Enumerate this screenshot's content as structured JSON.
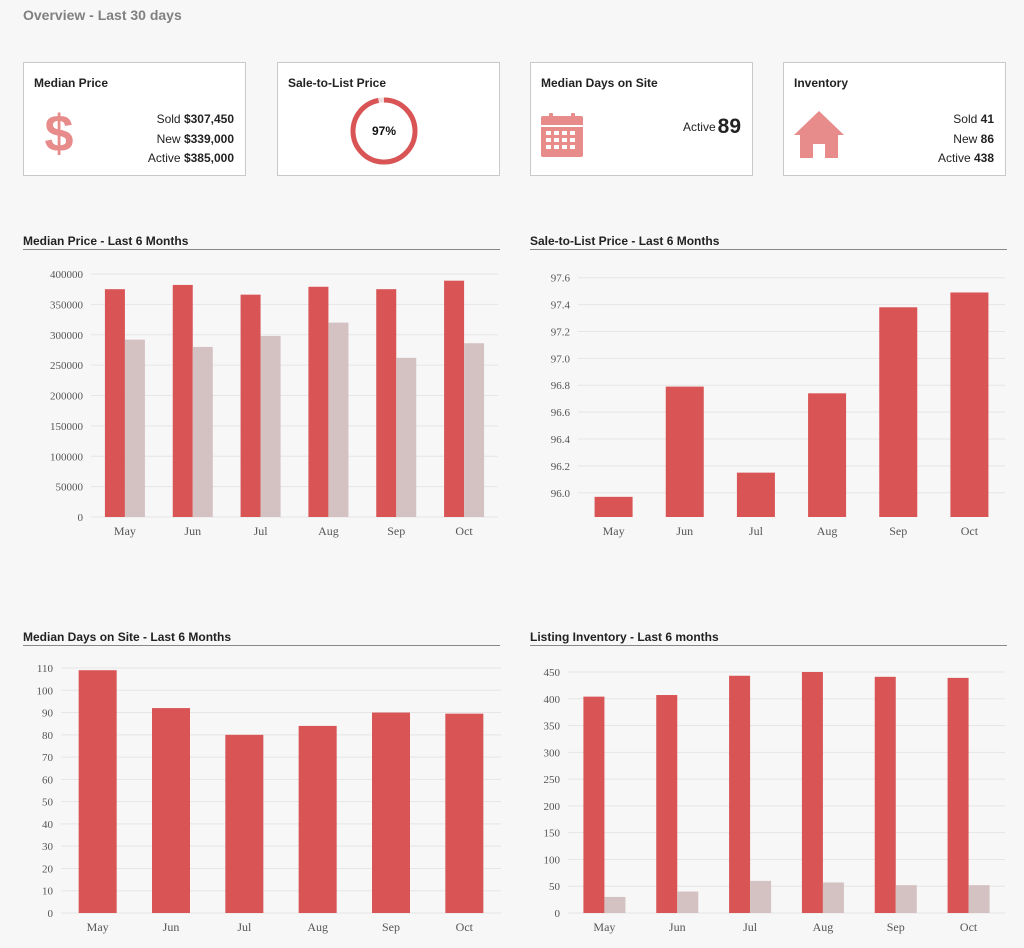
{
  "page": {
    "title": "Overview - Last 30 days"
  },
  "colors": {
    "primary": "#d95454",
    "secondary": "#d4c1c1",
    "icon": "#e78b8b"
  },
  "cards": {
    "median_price": {
      "title": "Median Price",
      "icon": "dollar-icon",
      "sold_label": "Sold",
      "sold_value": "$307,450",
      "new_label": "New",
      "new_value": "$339,000",
      "active_label": "Active",
      "active_value": "$385,000"
    },
    "sale_to_list": {
      "title": "Sale-to-List Price",
      "value": "97%",
      "ratio": 0.97
    },
    "days_on_site": {
      "title": "Median Days on Site",
      "icon": "calendar-icon",
      "active_label": "Active",
      "active_value": "89"
    },
    "inventory": {
      "title": "Inventory",
      "icon": "house-icon",
      "sold_label": "Sold",
      "sold_value": "41",
      "new_label": "New",
      "new_value": "86",
      "active_label": "Active",
      "active_value": "438"
    }
  },
  "chart_data": [
    {
      "type": "bar",
      "title": "Median Price - Last 6 Months",
      "categories": [
        "May",
        "Jun",
        "Jul",
        "Aug",
        "Sep",
        "Oct"
      ],
      "series": [
        {
          "values": [
            375000,
            382000,
            366000,
            379000,
            375000,
            389000
          ]
        },
        {
          "values": [
            292000,
            280000,
            298000,
            320000,
            262000,
            286000
          ]
        }
      ],
      "ylim": [
        0,
        400000
      ],
      "yticks": [
        0,
        50000,
        100000,
        150000,
        200000,
        250000,
        300000,
        350000,
        400000
      ],
      "ytick_labels": [
        "0",
        "50000",
        "100000",
        "150000",
        "200000",
        "250000",
        "300000",
        "350000",
        "400000"
      ],
      "grid": true
    },
    {
      "type": "bar",
      "title": "Sale-to-List Price - Last 6 Months",
      "categories": [
        "May",
        "Jun",
        "Jul",
        "Aug",
        "Sep",
        "Oct"
      ],
      "series": [
        {
          "values": [
            95.97,
            96.79,
            96.15,
            96.74,
            97.38,
            97.49
          ]
        }
      ],
      "ylim": [
        95.82,
        97.62
      ],
      "yticks": [
        96.0,
        96.2,
        96.4,
        96.6,
        96.8,
        97.0,
        97.2,
        97.4,
        97.6
      ],
      "ytick_labels": [
        "96.0",
        "96.2",
        "96.4",
        "96.6",
        "96.8",
        "97.0",
        "97.2",
        "97.4",
        "97.6"
      ],
      "grid": true
    },
    {
      "type": "bar",
      "title": "Median Days on Site - Last 6 Months",
      "categories": [
        "May",
        "Jun",
        "Jul",
        "Aug",
        "Sep",
        "Oct"
      ],
      "series": [
        {
          "values": [
            109,
            92,
            80,
            84,
            90,
            89.5
          ]
        }
      ],
      "ylim": [
        0,
        110
      ],
      "yticks": [
        0,
        10,
        20,
        30,
        40,
        50,
        60,
        70,
        80,
        90,
        100,
        110
      ],
      "ytick_labels": [
        "0",
        "10",
        "20",
        "30",
        "40",
        "50",
        "60",
        "70",
        "80",
        "90",
        "100",
        "110"
      ],
      "grid": true
    },
    {
      "type": "bar",
      "title": "Listing Inventory - Last 6 months",
      "categories": [
        "May",
        "Jun",
        "Jul",
        "Aug",
        "Sep",
        "Oct"
      ],
      "series": [
        {
          "values": [
            404,
            407,
            443,
            450,
            441,
            439
          ]
        },
        {
          "values": [
            30,
            40,
            60,
            57,
            52,
            52
          ]
        }
      ],
      "ylim": [
        0,
        450
      ],
      "yticks": [
        0,
        50,
        100,
        150,
        200,
        250,
        300,
        350,
        400,
        450
      ],
      "ytick_labels": [
        "0",
        "50",
        "100",
        "150",
        "200",
        "250",
        "300",
        "350",
        "400",
        "450"
      ],
      "grid": true
    }
  ]
}
